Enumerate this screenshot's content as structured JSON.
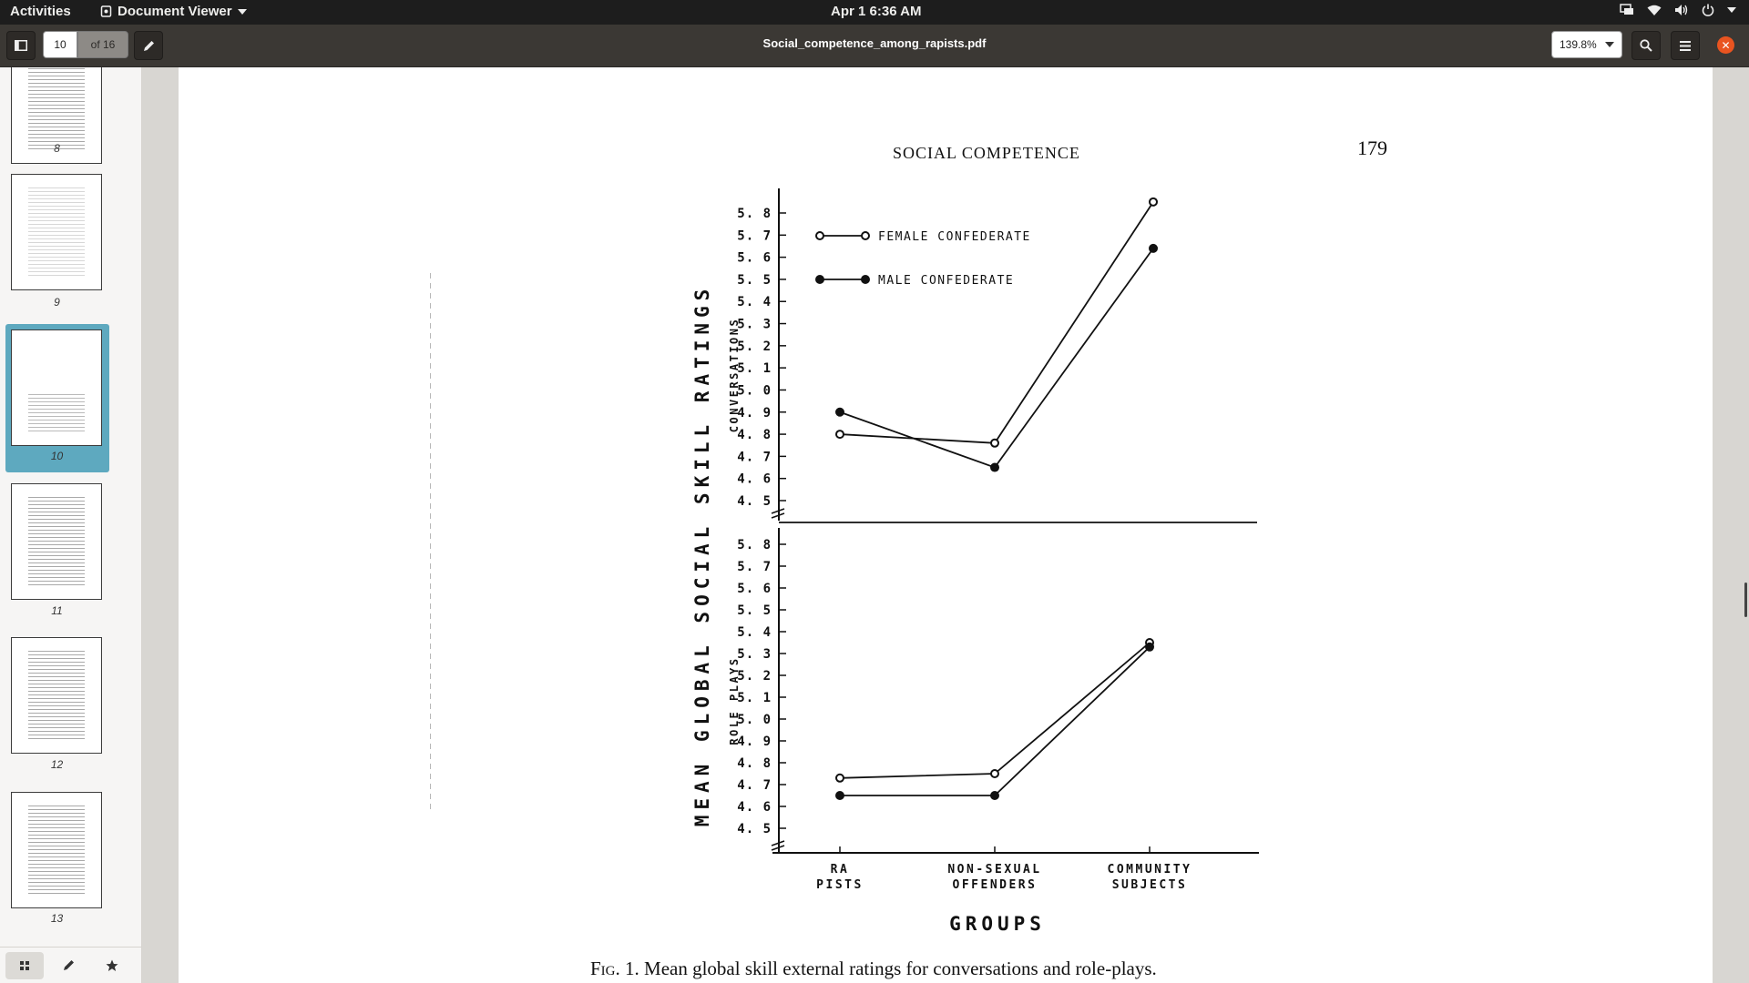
{
  "topbar": {
    "activities": "Activities",
    "app_name": "Document Viewer",
    "clock": "Apr 1  6:36 AM"
  },
  "header": {
    "current_page": "10",
    "page_total": "of 16",
    "document_title": "Social_competence_among_rapists.pdf",
    "zoom": "139.8%"
  },
  "sidebar": {
    "thumbnails": [
      {
        "label": "8"
      },
      {
        "label": "9"
      },
      {
        "label": "10",
        "selected": true
      },
      {
        "label": "11"
      },
      {
        "label": "12"
      },
      {
        "label": "13"
      }
    ]
  },
  "document": {
    "running_head": "SOCIAL COMPETENCE",
    "page_number": "179",
    "caption_prefix": "Fig. 1.",
    "caption_text": "Mean global skill external ratings for conversations and role-plays."
  },
  "chart_data": {
    "type": "line",
    "ylabel": "MEAN GLOBAL SOCIAL SKILL RATINGS",
    "xlabel": "GROUPS",
    "categories": [
      "RA PISTS",
      "NON-SEXUAL OFFENDERS",
      "COMMUNITY SUBJECTS"
    ],
    "ticks": [
      "4.5",
      "4.6",
      "4.7",
      "4.8",
      "4.9",
      "5.0",
      "5.1",
      "5.2",
      "5.3",
      "5.4",
      "5.5",
      "5.6",
      "5.7",
      "5.8"
    ],
    "legend": [
      {
        "name": "FEMALE CONFEDERATE",
        "marker": "open"
      },
      {
        "name": "MALE CONFEDERATE",
        "marker": "filled"
      }
    ],
    "panels": [
      {
        "label": "CONVERSATIONS",
        "ylim": [
          4.5,
          5.8
        ],
        "series": [
          {
            "name": "FEMALE CONFEDERATE",
            "values": [
              4.8,
              4.76,
              5.85
            ]
          },
          {
            "name": "MALE CONFEDERATE",
            "values": [
              4.9,
              4.65,
              5.64
            ]
          }
        ]
      },
      {
        "label": "ROLE PLAYS",
        "ylim": [
          4.5,
          5.8
        ],
        "series": [
          {
            "name": "FEMALE CONFEDERATE",
            "values": [
              4.73,
              4.75,
              5.35
            ]
          },
          {
            "name": "MALE CONFEDERATE",
            "values": [
              4.65,
              4.65,
              5.33
            ]
          }
        ]
      }
    ]
  }
}
